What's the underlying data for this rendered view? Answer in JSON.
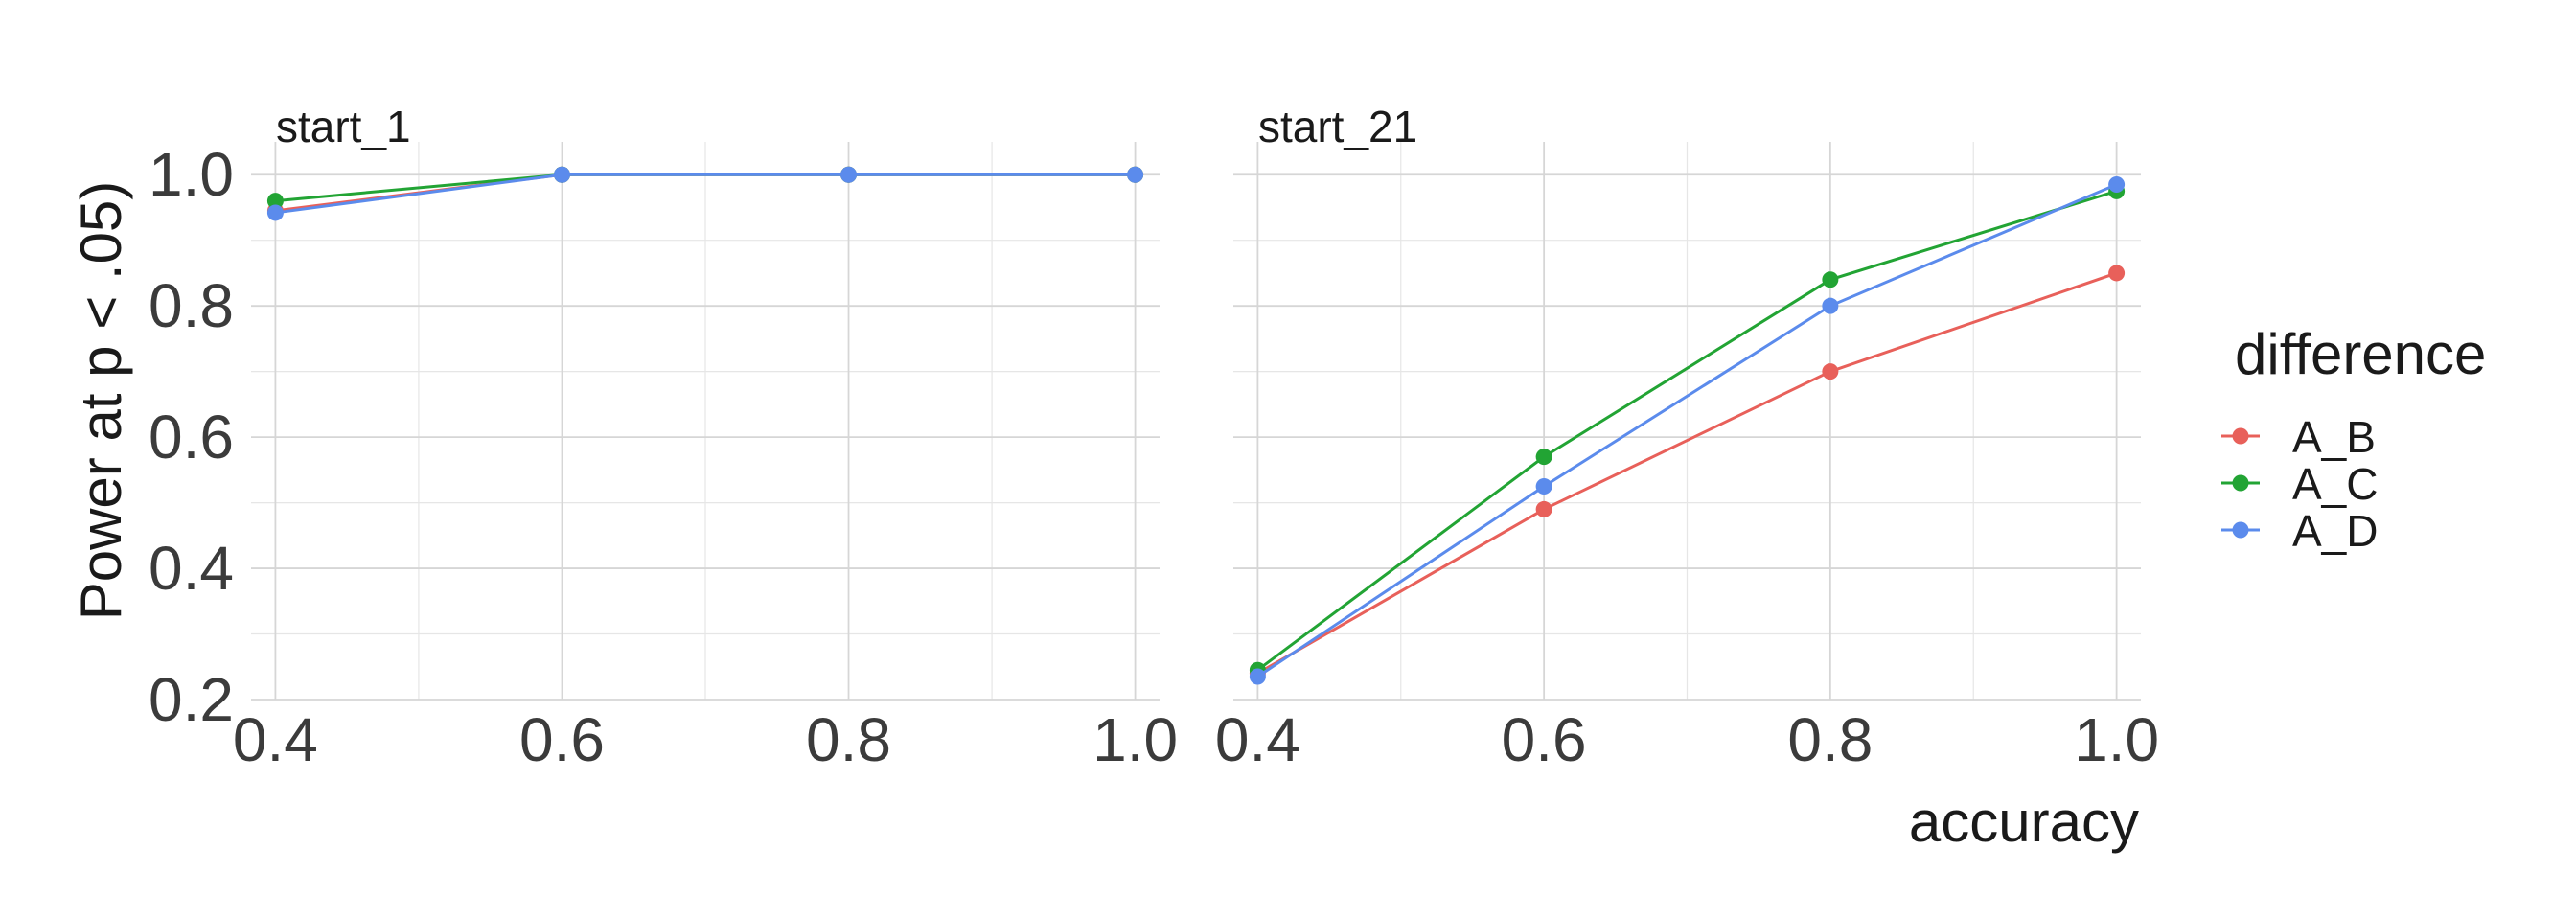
{
  "chart_data": {
    "type": "line",
    "ylabel": "Power at p < .05)",
    "xlabel": "accuracy",
    "xlim": [
      0.4,
      1.0
    ],
    "ylim": [
      0.2,
      1.0
    ],
    "x_ticks": [
      "0.4",
      "0.6",
      "0.8",
      "1.0"
    ],
    "y_ticks": [
      "0.2",
      "0.4",
      "0.6",
      "0.8",
      "1.0"
    ],
    "grid": true,
    "legend": {
      "title": "difference",
      "position": "right",
      "entries": [
        "A_B",
        "A_C",
        "A_D"
      ]
    },
    "colors": {
      "A_B": "#e8605a",
      "A_C": "#22a434",
      "A_D": "#5b8bec"
    },
    "panels": [
      {
        "title": "start_1",
        "x": [
          0.4,
          0.6,
          0.8,
          1.0
        ],
        "series": [
          {
            "name": "A_B",
            "values": [
              0.945,
              1.0,
              1.0,
              1.0
            ]
          },
          {
            "name": "A_C",
            "values": [
              0.96,
              1.0,
              1.0,
              1.0
            ]
          },
          {
            "name": "A_D",
            "values": [
              0.942,
              1.0,
              1.0,
              1.0
            ]
          }
        ]
      },
      {
        "title": "start_21",
        "x": [
          0.4,
          0.6,
          0.8,
          1.0
        ],
        "series": [
          {
            "name": "A_B",
            "values": [
              0.24,
              0.49,
              0.7,
              0.85
            ]
          },
          {
            "name": "A_C",
            "values": [
              0.245,
              0.57,
              0.84,
              0.975
            ]
          },
          {
            "name": "A_D",
            "values": [
              0.235,
              0.525,
              0.8,
              0.985
            ]
          }
        ]
      }
    ]
  }
}
